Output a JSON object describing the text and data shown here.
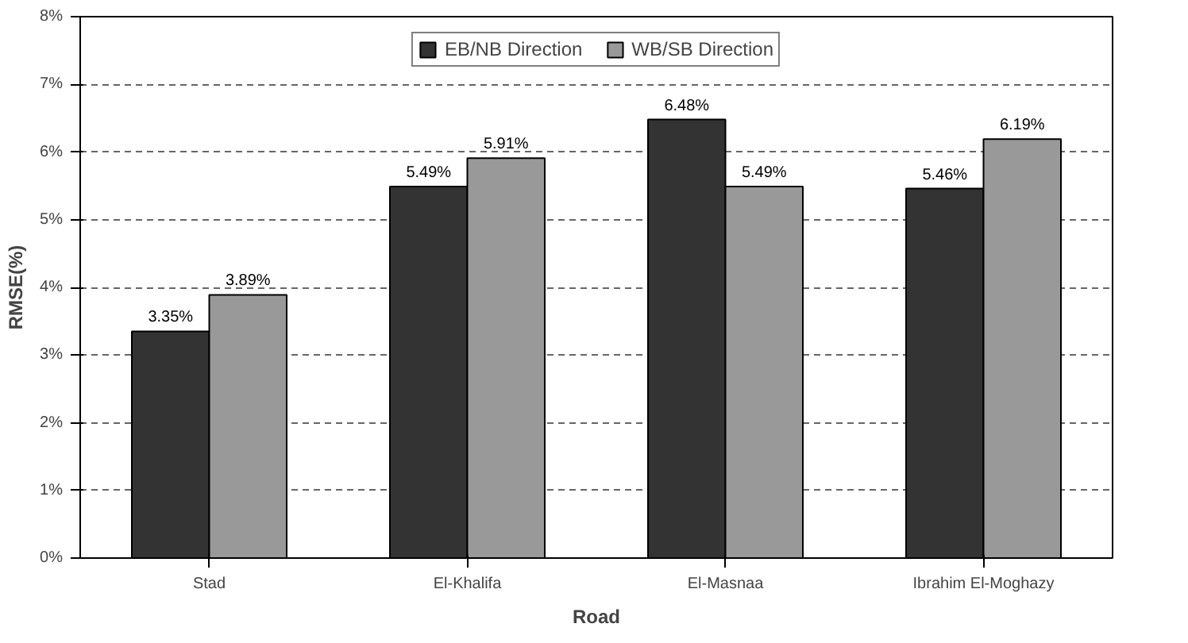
{
  "chart_data": {
    "type": "bar",
    "xlabel": "Road",
    "ylabel": "RMSE(%)",
    "categories": [
      "Stad",
      "El-Khalifa",
      "El-Masnaa",
      "Ibrahim El-Moghazy"
    ],
    "series": [
      {
        "name": "EB/NB Direction",
        "color": "#333333",
        "values": [
          3.35,
          5.49,
          6.48,
          5.46
        ],
        "value_labels": [
          "3.35%",
          "5.49%",
          "6.48%",
          "5.46%"
        ]
      },
      {
        "name": "WB/SB Direction",
        "color": "#999999",
        "values": [
          3.89,
          5.91,
          5.49,
          6.19
        ],
        "value_labels": [
          "3.89%",
          "5.91%",
          "5.49%",
          "6.19%"
        ]
      }
    ],
    "ylim": [
      0,
      8
    ],
    "yticks": [
      {
        "value": 0,
        "label": "0%"
      },
      {
        "value": 1,
        "label": "1%"
      },
      {
        "value": 2,
        "label": "2%"
      },
      {
        "value": 3,
        "label": "3%"
      },
      {
        "value": 4,
        "label": "4%"
      },
      {
        "value": 5,
        "label": "5%"
      },
      {
        "value": 6,
        "label": "6%"
      },
      {
        "value": 7,
        "label": "7%"
      },
      {
        "value": 8,
        "label": "8%"
      }
    ],
    "grid": "y",
    "legend": "top"
  }
}
